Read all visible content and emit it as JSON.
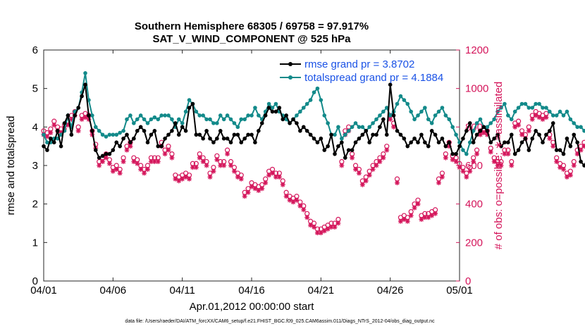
{
  "chart_data": {
    "type": "line",
    "title_line1": "Southern Hemisphere 68305 / 69758 = 97.917%",
    "title_line2": "SAT_V_WIND_COMPONENT @ 525 hPa",
    "xlabel": "Apr.01,2012 00:00:00 start",
    "ylabel": "rmse and totalspread",
    "ylabel_right": "# of obs: o=possible; ∗=assimilated",
    "footer": "data file: /Users/raeder/DAI/ATM_forcXX/CAM6_setup/f.e21.FHIST_BGC.f09_025.CAM6assim.011/Diags_NTrS_2012-04/obs_diag_output.nc",
    "xlim": [
      0,
      30
    ],
    "ylim": [
      0,
      6
    ],
    "ylim_right": [
      0,
      1200
    ],
    "xticks": [
      0,
      5,
      10,
      15,
      20,
      25,
      30
    ],
    "xtick_labels": [
      "04/01",
      "04/06",
      "04/11",
      "04/16",
      "04/21",
      "04/26",
      "05/01"
    ],
    "yticks": [
      0,
      1,
      2,
      3,
      4,
      5,
      6
    ],
    "ytick_labels": [
      "0",
      "1",
      "2",
      "3",
      "4",
      "5",
      "6"
    ],
    "yticks_right": [
      0,
      200,
      400,
      600,
      800,
      1000,
      1200
    ],
    "ytick_labels_right": [
      "0",
      "200",
      "400",
      "600",
      "800",
      "1000",
      "1200"
    ],
    "legend": [
      "rmse grand pr = 3.8702",
      "totalspread grand pr = 4.1884"
    ],
    "colors": {
      "rmse": "#000000",
      "spread": "#138a8a",
      "obs": "#d4145a",
      "legend_text": "#1a52e6"
    },
    "step_days": 0.25,
    "series": [
      {
        "name": "rmse",
        "values": [
          3.5,
          3.4,
          3.7,
          3.6,
          3.9,
          3.5,
          4.1,
          4.3,
          3.8,
          4.3,
          4.5,
          4.8,
          5.1,
          4.3,
          3.9,
          3.4,
          3.2,
          3.25,
          3.3,
          3.3,
          3.4,
          3.6,
          3.5,
          3.7,
          3.8,
          3.6,
          3.7,
          3.9,
          4.0,
          3.9,
          3.6,
          3.8,
          3.9,
          3.5,
          3.5,
          3.7,
          3.8,
          3.9,
          4.1,
          3.8,
          4.0,
          3.9,
          4.5,
          4.6,
          3.8,
          3.8,
          3.7,
          3.9,
          3.7,
          3.6,
          3.7,
          3.9,
          3.7,
          3.7,
          3.6,
          3.8,
          3.8,
          3.6,
          3.7,
          3.8,
          3.8,
          3.6,
          3.9,
          4.1,
          4.3,
          4.5,
          4.4,
          4.4,
          4.5,
          4.2,
          4.3,
          4.1,
          4.2,
          4.1,
          3.9,
          4.0,
          3.9,
          3.8,
          3.7,
          3.6,
          3.7,
          3.4,
          3.5,
          3.8,
          3.3,
          3.5,
          3.6,
          3.2,
          3.4,
          3.4,
          3.6,
          3.7,
          3.8,
          3.9,
          3.6,
          3.8,
          3.8,
          4.0,
          4.2,
          3.8,
          5.1,
          4.3,
          3.9,
          3.8,
          3.7,
          3.5,
          3.6,
          3.7,
          3.6,
          3.8,
          3.6,
          3.5,
          3.9,
          3.8,
          3.6,
          3.7,
          3.5,
          3.6,
          3.3,
          3.3,
          3.5,
          3.7,
          3.9,
          4.1,
          3.6,
          3.8,
          3.9,
          4.0,
          3.9,
          3.6,
          3.7,
          3.8,
          3.5,
          3.6,
          3.6,
          3.8,
          3.3,
          3.4,
          3.6,
          3.7,
          3.4,
          3.7,
          3.9,
          3.8,
          3.6,
          3.8,
          3.9,
          4.1,
          3.4,
          3.4,
          3.3,
          3.7,
          3.5,
          3.8,
          3.6,
          3.1,
          3.0,
          3.2,
          3.3,
          3.2,
          3.1,
          3.4,
          3.6,
          3.7,
          3.6,
          3.8,
          3.5,
          3.6,
          3.4,
          3.6,
          4.3,
          4.6,
          4.4,
          4.5,
          3.9,
          3.8,
          4.1,
          4.6,
          5.5,
          4.0,
          3.5,
          3.6,
          3.7,
          3.4,
          3.3,
          3.1
        ]
      },
      {
        "name": "totalspread",
        "values": [
          3.8,
          3.6,
          3.6,
          3.7,
          3.7,
          3.8,
          3.9,
          4.3,
          4.0,
          4.4,
          4.5,
          4.9,
          5.4,
          4.7,
          4.3,
          4.0,
          3.9,
          3.8,
          3.75,
          3.8,
          3.8,
          3.8,
          3.85,
          3.9,
          4.2,
          4.3,
          4.1,
          4.2,
          4.3,
          4.2,
          4.1,
          4.2,
          4.25,
          4.2,
          4.3,
          4.3,
          4.3,
          4.2,
          4.0,
          4.2,
          4.1,
          4.4,
          4.7,
          4.6,
          4.4,
          4.3,
          4.3,
          4.2,
          4.2,
          4.1,
          4.1,
          4.3,
          4.2,
          4.3,
          4.2,
          4.1,
          4.0,
          4.2,
          4.2,
          4.3,
          4.3,
          4.5,
          4.3,
          4.2,
          4.4,
          4.6,
          4.5,
          4.6,
          4.4,
          4.3,
          4.2,
          4.1,
          4.2,
          4.3,
          4.4,
          4.5,
          4.6,
          4.7,
          4.9,
          5.0,
          4.7,
          4.3,
          4.1,
          3.8,
          3.8,
          4.0,
          3.7,
          3.8,
          3.9,
          4.0,
          4.1,
          4.0,
          4.0,
          3.9,
          4.0,
          4.1,
          4.2,
          4.3,
          4.4,
          4.5,
          4.3,
          4.4,
          4.6,
          4.8,
          4.7,
          4.6,
          4.4,
          4.2,
          4.3,
          4.4,
          4.5,
          4.2,
          4.1,
          4.3,
          4.4,
          4.5,
          4.3,
          4.2,
          4.0,
          3.8,
          3.6,
          3.4,
          3.3,
          3.6,
          3.9,
          4.1,
          4.2,
          4.0,
          4.0,
          4.1,
          4.2,
          4.4,
          4.5,
          4.6,
          4.3,
          4.2,
          4.4,
          4.5,
          4.6,
          4.6,
          4.5,
          4.5,
          4.6,
          4.6,
          4.5,
          4.5,
          4.4,
          4.3,
          4.3,
          4.4,
          4.3,
          4.4,
          4.2,
          4.1,
          4.0,
          4.0,
          3.9,
          4.0,
          4.1,
          4.2,
          4.3,
          4.4,
          4.6,
          4.7,
          4.7,
          4.5,
          4.4,
          4.3,
          4.6,
          4.9,
          5.0,
          4.3,
          4.2,
          4.4,
          4.5,
          4.6,
          4.3,
          4.3,
          4.2,
          4.3,
          4.4,
          4.3,
          4.1,
          3.8
        ]
      },
      {
        "name": "obs_possible",
        "values": [
          780,
          770,
          790,
          830,
          800,
          790,
          810,
          830,
          860,
          880,
          800,
          860,
          870,
          860,
          780,
          710,
          620,
          640,
          660,
          630,
          590,
          600,
          580,
          640,
          700,
          720,
          640,
          630,
          600,
          580,
          600,
          640,
          640,
          640,
          720,
          680,
          700,
          660,
          550,
          540,
          550,
          560,
          550,
          610,
          610,
          660,
          640,
          620,
          560,
          590,
          650,
          620,
          620,
          680,
          620,
          590,
          560,
          550,
          460,
          480,
          510,
          500,
          490,
          500,
          530,
          570,
          580,
          560,
          560,
          520,
          460,
          440,
          430,
          440,
          410,
          390,
          350,
          310,
          300,
          270,
          270,
          280,
          290,
          300,
          300,
          320,
          620,
          780,
          800,
          660,
          600,
          580,
          520,
          540,
          570,
          600,
          620,
          640,
          660,
          700,
          860,
          820,
          530,
          330,
          340,
          330,
          360,
          400,
          420,
          340,
          350,
          350,
          360,
          370,
          530,
          560,
          660,
          720,
          650,
          640,
          610,
          590,
          560,
          590,
          640,
          680,
          780,
          790,
          780,
          690,
          640,
          620,
          620,
          680,
          680,
          620,
          820,
          830,
          780,
          760,
          800,
          860,
          880,
          870,
          860,
          870,
          760,
          720,
          640,
          610,
          600,
          560,
          570,
          620,
          680,
          700,
          720,
          830,
          820,
          800,
          810,
          800,
          780,
          760,
          720,
          680,
          660,
          670,
          680,
          670,
          770,
          820,
          850,
          860,
          800,
          790,
          780,
          660,
          660,
          670,
          700,
          660,
          420,
          380,
          360,
          20
        ]
      },
      {
        "name": "obs_assimilated",
        "values": [
          760,
          750,
          770,
          810,
          780,
          770,
          790,
          810,
          840,
          860,
          780,
          840,
          850,
          840,
          760,
          690,
          600,
          620,
          640,
          610,
          570,
          580,
          560,
          620,
          680,
          700,
          620,
          610,
          580,
          560,
          580,
          620,
          620,
          620,
          700,
          660,
          680,
          640,
          530,
          520,
          530,
          540,
          530,
          590,
          590,
          640,
          620,
          600,
          540,
          570,
          630,
          600,
          600,
          660,
          600,
          570,
          540,
          530,
          440,
          460,
          490,
          480,
          470,
          480,
          510,
          550,
          560,
          540,
          540,
          500,
          440,
          420,
          410,
          420,
          390,
          370,
          330,
          290,
          280,
          250,
          250,
          260,
          270,
          280,
          280,
          300,
          600,
          760,
          780,
          640,
          580,
          560,
          500,
          520,
          550,
          580,
          600,
          620,
          640,
          680,
          840,
          800,
          510,
          310,
          320,
          310,
          340,
          380,
          400,
          320,
          330,
          330,
          340,
          350,
          510,
          540,
          640,
          700,
          630,
          620,
          590,
          570,
          540,
          570,
          620,
          660,
          760,
          770,
          760,
          670,
          620,
          600,
          600,
          660,
          660,
          600,
          800,
          810,
          760,
          740,
          780,
          840,
          860,
          850,
          840,
          850,
          740,
          700,
          620,
          590,
          580,
          540,
          550,
          600,
          660,
          680,
          700,
          810,
          800,
          780,
          790,
          780,
          760,
          740,
          700,
          660,
          640,
          650,
          660,
          650,
          750,
          800,
          830,
          840,
          780,
          770,
          760,
          640,
          640,
          650,
          680,
          640,
          400,
          360,
          340,
          10
        ]
      }
    ]
  }
}
